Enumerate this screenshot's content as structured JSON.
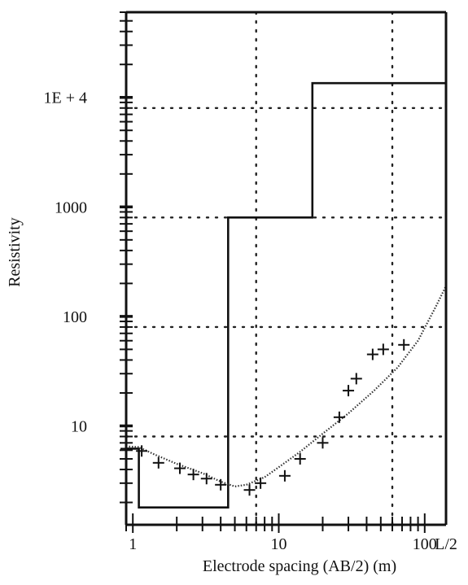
{
  "chart_data": {
    "type": "line",
    "title": "",
    "xlabel": "Electrode spacing (AB/2) (m)",
    "ylabel": "Resistivity",
    "x_scale": "log",
    "y_scale": "log",
    "xlim": [
      0.9,
      140
    ],
    "ylim": [
      1.25,
      60000
    ],
    "grid": true,
    "x_tick_labels": [
      {
        "value": 1,
        "label": "1"
      },
      {
        "value": 10,
        "label": "10"
      },
      {
        "value": 100,
        "label": "100"
      },
      {
        "value": 140,
        "label": "L/2"
      }
    ],
    "y_tick_labels": [
      {
        "value": 10,
        "label": "10"
      },
      {
        "value": 100,
        "label": "100"
      },
      {
        "value": 1000,
        "label": "1000"
      },
      {
        "value": 10000,
        "label": "1E + 4"
      }
    ],
    "x_gridlines": [
      7,
      60
    ],
    "y_gridlines": [
      8,
      80,
      800,
      8000
    ],
    "series": [
      {
        "kind": "layer-model",
        "style": "step",
        "x": [
          0.9,
          1.1,
          1.1,
          4.5,
          4.5,
          17,
          17,
          140
        ],
        "y": [
          6.2,
          6.2,
          1.8,
          1.8,
          800,
          800,
          13500,
          13500
        ]
      },
      {
        "kind": "calculated",
        "style": "dotted",
        "x": [
          0.9,
          1.1,
          1.4,
          2,
          3,
          4,
          5,
          6,
          8,
          10,
          14,
          20,
          30,
          45,
          65,
          90,
          120,
          140
        ],
        "y": [
          6.5,
          6.4,
          5.5,
          4.5,
          3.7,
          3.1,
          2.8,
          2.9,
          3.4,
          4.2,
          5.8,
          8.5,
          13,
          21,
          34,
          60,
          125,
          190
        ]
      },
      {
        "kind": "field-data",
        "style": "plus",
        "x": [
          0.9,
          1.15,
          1.5,
          2.1,
          2.6,
          3.2,
          4,
          6.3,
          7.5,
          11,
          14,
          20,
          26,
          30,
          34,
          44,
          52,
          72
        ],
        "y": [
          6.2,
          5.9,
          4.6,
          4.1,
          3.6,
          3.3,
          2.9,
          2.6,
          3,
          3.5,
          5,
          7,
          12,
          21,
          27,
          45,
          50,
          55
        ]
      }
    ]
  }
}
